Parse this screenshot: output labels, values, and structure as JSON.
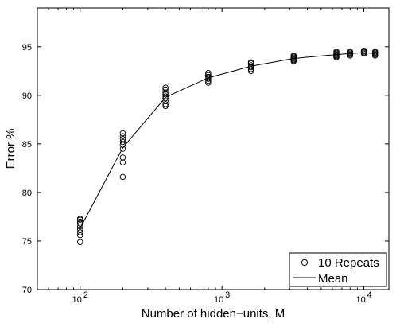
{
  "chart_data": {
    "type": "scatter",
    "title": "",
    "xlabel": "Number of hidden−units, M",
    "ylabel": "Error %",
    "xscale": "log",
    "xlim": [
      50,
      15000
    ],
    "ylim": [
      70,
      99
    ],
    "x_ticks": [
      {
        "value": 100,
        "base": "10",
        "exp": "2"
      },
      {
        "value": 1000,
        "base": "10",
        "exp": "3"
      },
      {
        "value": 10000,
        "base": "10",
        "exp": "4"
      }
    ],
    "y_ticks": [
      70,
      75,
      80,
      85,
      90,
      95
    ],
    "grid": false,
    "legend_position": "bottom-right",
    "series": [
      {
        "name": "10 Repeats",
        "kind": "scatter",
        "marker": "open-circle",
        "points": [
          [
            100,
            74.9
          ],
          [
            100,
            75.6
          ],
          [
            100,
            75.9
          ],
          [
            100,
            76.2
          ],
          [
            100,
            76.5
          ],
          [
            100,
            76.8
          ],
          [
            100,
            77.0
          ],
          [
            100,
            77.2
          ],
          [
            100,
            77.3
          ],
          [
            200,
            81.6
          ],
          [
            200,
            83.1
          ],
          [
            200,
            83.6
          ],
          [
            200,
            84.5
          ],
          [
            200,
            84.9
          ],
          [
            200,
            85.2
          ],
          [
            200,
            85.5
          ],
          [
            200,
            85.8
          ],
          [
            200,
            86.1
          ],
          [
            400,
            88.9
          ],
          [
            400,
            89.1
          ],
          [
            400,
            89.4
          ],
          [
            400,
            89.7
          ],
          [
            400,
            89.9
          ],
          [
            400,
            90.1
          ],
          [
            400,
            90.3
          ],
          [
            400,
            90.6
          ],
          [
            400,
            90.8
          ],
          [
            800,
            91.3
          ],
          [
            800,
            91.5
          ],
          [
            800,
            91.7
          ],
          [
            800,
            91.9
          ],
          [
            800,
            92.1
          ],
          [
            800,
            92.3
          ],
          [
            1600,
            92.5
          ],
          [
            1600,
            92.7
          ],
          [
            1600,
            92.9
          ],
          [
            1600,
            93.1
          ],
          [
            1600,
            93.3
          ],
          [
            1600,
            93.4
          ],
          [
            3200,
            93.5
          ],
          [
            3200,
            93.6
          ],
          [
            3200,
            93.7
          ],
          [
            3200,
            93.8
          ],
          [
            3200,
            93.9
          ],
          [
            3200,
            94.0
          ],
          [
            3200,
            94.1
          ],
          [
            6400,
            93.9
          ],
          [
            6400,
            94.0
          ],
          [
            6400,
            94.1
          ],
          [
            6400,
            94.2
          ],
          [
            6400,
            94.3
          ],
          [
            6400,
            94.4
          ],
          [
            6400,
            94.5
          ],
          [
            8000,
            94.1
          ],
          [
            8000,
            94.2
          ],
          [
            8000,
            94.3
          ],
          [
            8000,
            94.4
          ],
          [
            8000,
            94.5
          ],
          [
            10000,
            94.3
          ],
          [
            10000,
            94.4
          ],
          [
            10000,
            94.5
          ],
          [
            10000,
            94.6
          ],
          [
            12000,
            94.1
          ],
          [
            12000,
            94.2
          ],
          [
            12000,
            94.3
          ],
          [
            12000,
            94.4
          ],
          [
            12000,
            94.5
          ]
        ]
      },
      {
        "name": "Mean",
        "kind": "line",
        "x": [
          100,
          200,
          400,
          800,
          1600,
          3200,
          6400,
          8000,
          10000,
          12000
        ],
        "y": [
          76.3,
          84.6,
          89.8,
          91.8,
          93.0,
          93.8,
          94.2,
          94.3,
          94.4,
          94.3
        ]
      }
    ]
  }
}
